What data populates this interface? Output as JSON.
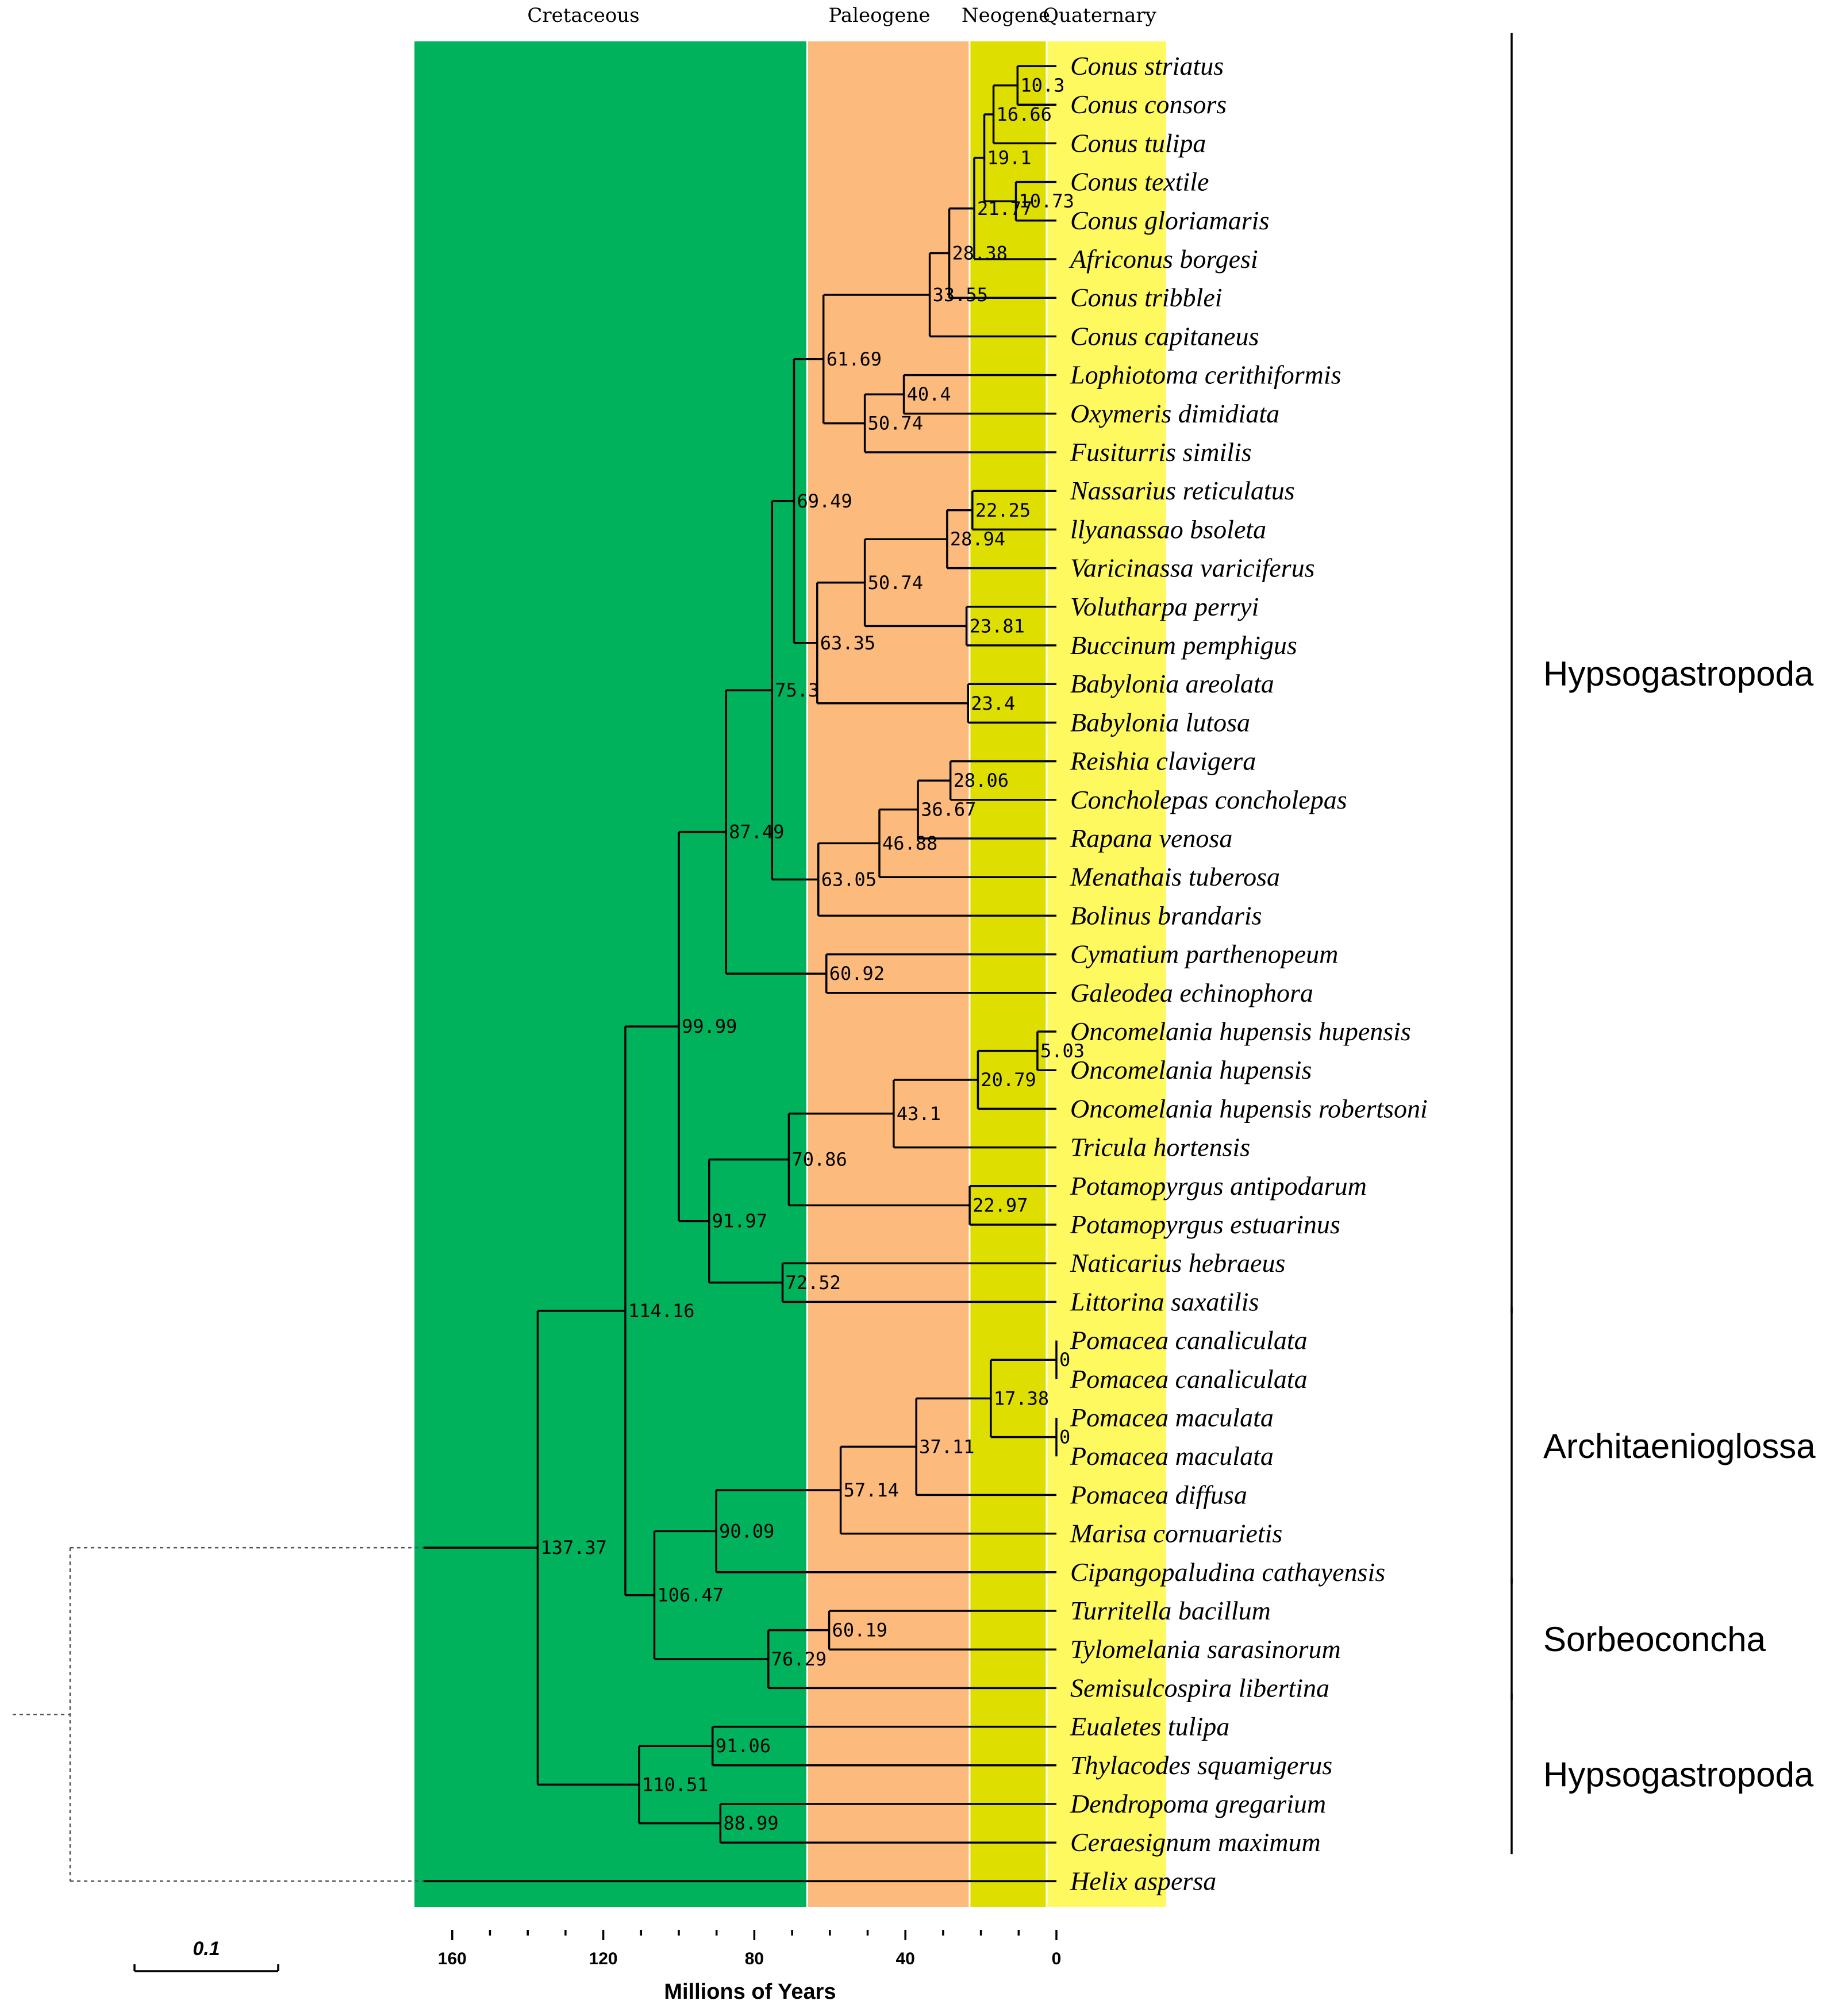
{
  "colors": {
    "cretaceous": "#00b25b",
    "paleogene": "#fcbb7c",
    "neogene": "#dede00",
    "quaternary": "#fff960",
    "line": "#000000"
  },
  "periods": [
    {
      "name": "Cretaceous",
      "from": 170,
      "to": 66,
      "color": "#00b25b"
    },
    {
      "name": "Paleogene",
      "from": 66,
      "to": 23,
      "color": "#fcbb7c"
    },
    {
      "name": "Neogene",
      "from": 23,
      "to": 2.6,
      "color": "#dede00"
    },
    {
      "name": "Quaternary",
      "from": 2.6,
      "to": -29,
      "color": "#fff960"
    }
  ],
  "taxa": [
    "Conus striatus",
    "Conus consors",
    "Conus tulipa",
    "Conus textile",
    "Conus gloriamaris",
    "Africonus borgesi",
    "Conus tribblei",
    "Conus capitaneus",
    "Lophiotoma cerithiformis",
    "Oxymeris dimidiata",
    "Fusiturris similis",
    "Nassarius reticulatus",
    "llyanassao bsoleta",
    "Varicinassa variciferus",
    "Volutharpa perryi",
    "Buccinum pemphigus",
    "Babylonia areolata",
    "Babylonia lutosa",
    "Reishia clavigera",
    "Concholepas concholepas",
    "Rapana venosa",
    "Menathais tuberosa",
    "Bolinus brandaris",
    "Cymatium parthenopeum",
    "Galeodea echinophora",
    "Oncomelania hupensis hupensis",
    "Oncomelania hupensis",
    "Oncomelania hupensis robertsoni",
    "Tricula hortensis",
    "Potamopyrgus antipodarum",
    "Potamopyrgus estuarinus",
    "Naticarius hebraeus",
    "Littorina saxatilis",
    "Pomacea canaliculata",
    "Pomacea canaliculata",
    "Pomacea maculata",
    "Pomacea maculata",
    "Pomacea diffusa",
    "Marisa cornuarietis",
    "Cipangopaludina cathayensis",
    "Turritella bacillum",
    "Tylomelania sarasinorum",
    "Semisulcospira libertina",
    "Eualetes tulipa",
    "Thylacodes squamigerus",
    "Dendropoma gregarium",
    "Ceraesignum maximum",
    "Helix aspersa"
  ],
  "tree": {
    "outgroup_taxon": 47,
    "root": {
      "label": "137.37",
      "age": 137.37,
      "children": [
        {
          "label": "114.16",
          "age": 114.16,
          "children": [
            {
              "label": "99.99",
              "age": 99.99,
              "children": [
                {
                  "label": "87.49",
                  "age": 87.49,
                  "children": [
                    {
                      "label": "75.3",
                      "age": 75.3,
                      "children": [
                        {
                          "label": "69.49",
                          "age": 69.49,
                          "children": [
                            {
                              "label": "61.69",
                              "age": 61.69,
                              "children": [
                                {
                                  "label": "33.55",
                                  "age": 33.55,
                                  "children": [
                                    {
                                      "label": "28.38",
                                      "age": 28.38,
                                      "children": [
                                        {
                                          "label": "21.77",
                                          "age": 21.77,
                                          "children": [
                                            {
                                              "label": "19.1",
                                              "age": 19.1,
                                              "children": [
                                                {
                                                  "label": "16.66",
                                                  "age": 16.66,
                                                  "children": [
                                                    {
                                                      "label": "10.3",
                                                      "age": 10.3,
                                                      "children": [
                                                        {
                                                          "taxon": 0
                                                        },
                                                        {
                                                          "taxon": 1
                                                        }
                                                      ]
                                                    },
                                                    {
                                                      "taxon": 2
                                                    }
                                                  ]
                                                },
                                                {
                                                  "label": "10.73",
                                                  "age": 10.73,
                                                  "children": [
                                                    {
                                                      "taxon": 3
                                                    },
                                                    {
                                                      "taxon": 4
                                                    }
                                                  ]
                                                }
                                              ]
                                            },
                                            {
                                              "taxon": 5
                                            }
                                          ]
                                        },
                                        {
                                          "taxon": 6
                                        }
                                      ]
                                    },
                                    {
                                      "taxon": 7
                                    }
                                  ]
                                },
                                {
                                  "label": "50.74",
                                  "age": 50.74,
                                  "children": [
                                    {
                                      "label": "40.4",
                                      "age": 40.4,
                                      "children": [
                                        {
                                          "taxon": 8
                                        },
                                        {
                                          "taxon": 9
                                        }
                                      ]
                                    },
                                    {
                                      "taxon": 10
                                    }
                                  ]
                                }
                              ]
                            },
                            {
                              "label": "63.35",
                              "age": 63.35,
                              "children": [
                                {
                                  "label": "50.74",
                                  "age": 50.74,
                                  "children": [
                                    {
                                      "label": "28.94",
                                      "age": 28.94,
                                      "children": [
                                        {
                                          "label": "22.25",
                                          "age": 22.25,
                                          "children": [
                                            {
                                              "taxon": 11
                                            },
                                            {
                                              "taxon": 12
                                            }
                                          ]
                                        },
                                        {
                                          "taxon": 13
                                        }
                                      ]
                                    },
                                    {
                                      "label": "23.81",
                                      "age": 23.81,
                                      "children": [
                                        {
                                          "taxon": 14
                                        },
                                        {
                                          "taxon": 15
                                        }
                                      ]
                                    }
                                  ]
                                },
                                {
                                  "label": "23.4",
                                  "age": 23.4,
                                  "children": [
                                    {
                                      "taxon": 16
                                    },
                                    {
                                      "taxon": 17
                                    }
                                  ]
                                }
                              ]
                            }
                          ]
                        },
                        {
                          "label": "63.05",
                          "age": 63.05,
                          "children": [
                            {
                              "label": "46.88",
                              "age": 46.88,
                              "children": [
                                {
                                  "label": "36.67",
                                  "age": 36.67,
                                  "children": [
                                    {
                                      "label": "28.06",
                                      "age": 28.06,
                                      "children": [
                                        {
                                          "taxon": 18
                                        },
                                        {
                                          "taxon": 19
                                        }
                                      ]
                                    },
                                    {
                                      "taxon": 20
                                    }
                                  ]
                                },
                                {
                                  "taxon": 21
                                }
                              ]
                            },
                            {
                              "taxon": 22
                            }
                          ]
                        }
                      ]
                    },
                    {
                      "label": "60.92",
                      "age": 60.92,
                      "children": [
                        {
                          "taxon": 23
                        },
                        {
                          "taxon": 24
                        }
                      ]
                    }
                  ]
                },
                {
                  "label": "91.97",
                  "age": 91.97,
                  "children": [
                    {
                      "label": "70.86",
                      "age": 70.86,
                      "children": [
                        {
                          "label": "43.1",
                          "age": 43.1,
                          "children": [
                            {
                              "label": "20.79",
                              "age": 20.79,
                              "children": [
                                {
                                  "label": "5.03",
                                  "age": 5.03,
                                  "children": [
                                    {
                                      "taxon": 25
                                    },
                                    {
                                      "taxon": 26
                                    }
                                  ]
                                },
                                {
                                  "taxon": 27
                                }
                              ]
                            },
                            {
                              "taxon": 28
                            }
                          ]
                        },
                        {
                          "label": "22.97",
                          "age": 22.97,
                          "children": [
                            {
                              "taxon": 29
                            },
                            {
                              "taxon": 30
                            }
                          ]
                        }
                      ]
                    },
                    {
                      "label": "72.52",
                      "age": 72.52,
                      "children": [
                        {
                          "taxon": 31
                        },
                        {
                          "taxon": 32
                        }
                      ]
                    }
                  ]
                }
              ]
            },
            {
              "label": "106.47",
              "age": 106.47,
              "children": [
                {
                  "label": "90.09",
                  "age": 90.09,
                  "children": [
                    {
                      "label": "57.14",
                      "age": 57.14,
                      "children": [
                        {
                          "label": "37.11",
                          "age": 37.11,
                          "children": [
                            {
                              "label": "17.38",
                              "age": 17.38,
                              "children": [
                                {
                                  "label": "0",
                                  "age": 0,
                                  "children": [
                                    {
                                      "taxon": 33
                                    },
                                    {
                                      "taxon": 34
                                    }
                                  ]
                                },
                                {
                                  "label": "0",
                                  "age": 0,
                                  "children": [
                                    {
                                      "taxon": 35
                                    },
                                    {
                                      "taxon": 36
                                    }
                                  ]
                                }
                              ]
                            },
                            {
                              "taxon": 37
                            }
                          ]
                        },
                        {
                          "taxon": 38
                        }
                      ]
                    },
                    {
                      "taxon": 39
                    }
                  ]
                },
                {
                  "label": "76.29",
                  "age": 76.29,
                  "children": [
                    {
                      "label": "60.19",
                      "age": 60.19,
                      "children": [
                        {
                          "taxon": 40
                        },
                        {
                          "taxon": 41
                        }
                      ]
                    },
                    {
                      "taxon": 42
                    }
                  ]
                }
              ]
            }
          ]
        },
        {
          "label": "110.51",
          "age": 110.51,
          "children": [
            {
              "label": "91.06",
              "age": 91.06,
              "children": [
                {
                  "taxon": 43
                },
                {
                  "taxon": 44
                }
              ]
            },
            {
              "label": "88.99",
              "age": 88.99,
              "children": [
                {
                  "taxon": 45
                },
                {
                  "taxon": 46
                }
              ]
            }
          ]
        }
      ]
    }
  },
  "clades": [
    {
      "name": "Hypsogastropoda",
      "from_taxon": 0,
      "to_taxon": 32
    },
    {
      "name": "Architaenioglossa",
      "from_taxon": 33,
      "to_taxon": 39
    },
    {
      "name": "Sorbeoconcha",
      "from_taxon": 40,
      "to_taxon": 42
    },
    {
      "name": "Hypsogastropoda",
      "from_taxon": 43,
      "to_taxon": 46
    }
  ],
  "axis": {
    "title": "Millions of Years",
    "ticks": [
      "160",
      "120",
      "80",
      "40",
      "0"
    ],
    "tick_values": [
      160,
      120,
      80,
      40,
      0
    ],
    "minor_step": 10
  },
  "scale_bar": {
    "label": "0.1"
  }
}
